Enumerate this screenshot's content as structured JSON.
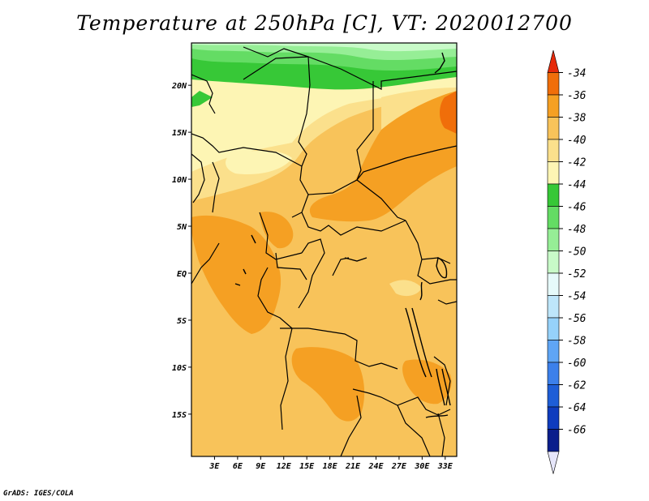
{
  "title": "Temperature at 250hPa [C], VT: 2020012700",
  "credit": "GrADS: IGES/COLA",
  "map": {
    "lat_labels": [
      "20N",
      "15N",
      "10N",
      "5N",
      "EQ",
      "5S",
      "10S",
      "15S"
    ],
    "lat_values": [
      20,
      15,
      10,
      5,
      0,
      -5,
      -10,
      -15
    ],
    "lon_labels": [
      "3E",
      "6E",
      "9E",
      "12E",
      "15E",
      "18E",
      "21E",
      "24E",
      "27E",
      "30E",
      "33E"
    ],
    "lon_values": [
      3,
      6,
      9,
      12,
      15,
      18,
      21,
      24,
      27,
      30,
      33
    ],
    "lat_range": [
      -19.5,
      24.5
    ],
    "lon_range": [
      0,
      34.5
    ]
  },
  "colorbar": {
    "unit": "C",
    "labels": [
      "-34",
      "-36",
      "-38",
      "-40",
      "-42",
      "-44",
      "-46",
      "-48",
      "-50",
      "-52",
      "-54",
      "-56",
      "-58",
      "-60",
      "-62",
      "-64",
      "-66"
    ],
    "colors": [
      "#e62a0a",
      "#f06e0a",
      "#f5a023",
      "#f8c35a",
      "#fbe08c",
      "#fdf5b4",
      "#37c837",
      "#64dc64",
      "#96ee96",
      "#c8fac8",
      "#e6fafa",
      "#bee6fa",
      "#96d2fa",
      "#5fa5f5",
      "#3c80eb",
      "#1e5ed7",
      "#0f3cbe",
      "#0a1e8c",
      "#e6e6fa"
    ]
  }
}
